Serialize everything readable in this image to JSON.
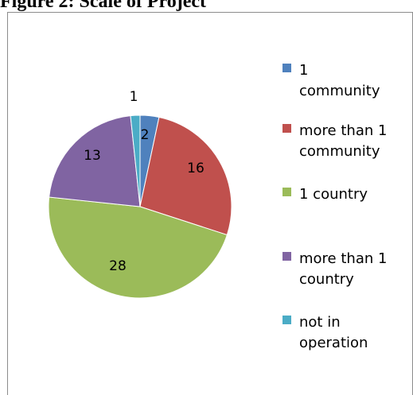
{
  "caption": "Figure 2: Scale of Project",
  "chart_data": {
    "type": "pie",
    "title": "",
    "start_angle_deg": 0,
    "direction": "clockwise",
    "slices": [
      {
        "label": "1 community",
        "legend_lines": [
          "1",
          "community"
        ],
        "value": 2,
        "color": "#4f81bd"
      },
      {
        "label": "more than 1 community",
        "legend_lines": [
          "more than 1",
          "community"
        ],
        "value": 16,
        "color": "#c0504d"
      },
      {
        "label": "1 country",
        "legend_lines": [
          "1 country"
        ],
        "value": 28,
        "color": "#9bbb59"
      },
      {
        "label": "more than 1 country",
        "legend_lines": [
          "more than 1",
          "country"
        ],
        "value": 13,
        "color": "#8064a2"
      },
      {
        "label": "not in operation",
        "legend_lines": [
          "not in",
          "operation"
        ],
        "value": 1,
        "color": "#4bacc6"
      }
    ],
    "legend_position": "right"
  }
}
